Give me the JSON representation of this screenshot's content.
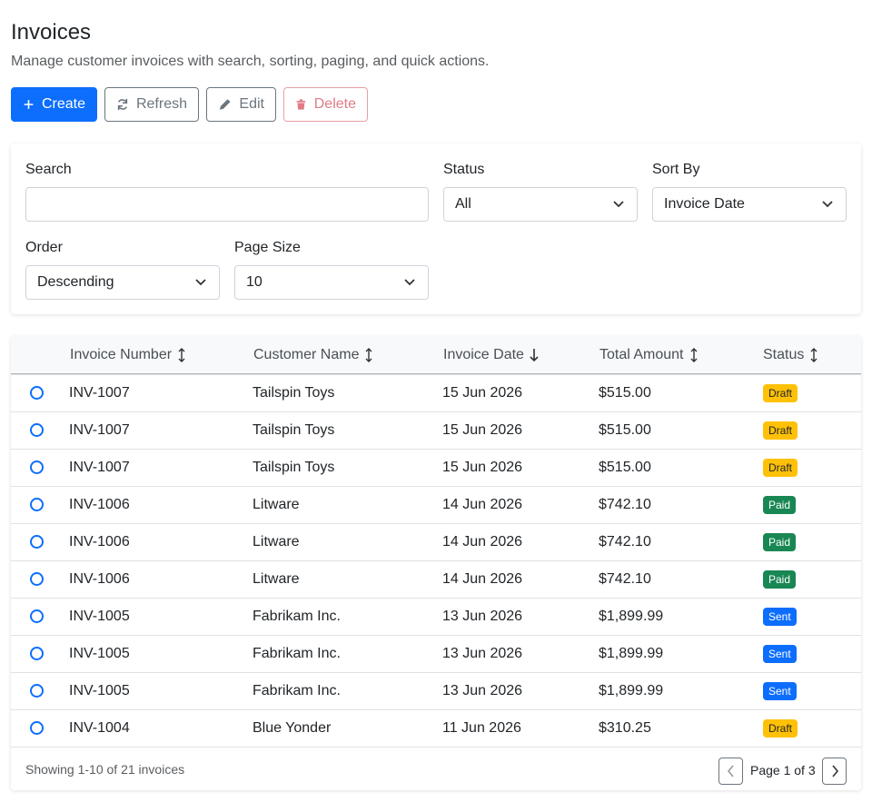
{
  "header": {
    "title": "Invoices",
    "subtitle": "Manage customer invoices with search, sorting, paging, and quick actions."
  },
  "toolbar": {
    "create": "Create",
    "refresh": "Refresh",
    "edit": "Edit",
    "delete": "Delete"
  },
  "filters": {
    "search_label": "Search",
    "status_label": "Status",
    "status_value": "All",
    "sort_label": "Sort By",
    "sort_value": "Invoice Date",
    "order_label": "Order",
    "order_value": "Descending",
    "page_size_label": "Page Size",
    "page_size_value": "10"
  },
  "table": {
    "columns": [
      "Invoice Number",
      "Customer Name",
      "Invoice Date",
      "Total Amount",
      "Status"
    ],
    "rows": [
      {
        "number": "INV-1007",
        "customer": "Tailspin Toys",
        "date": "15 Jun 2026",
        "amount": "$515.00",
        "status": "Draft",
        "status_color": "#ffc107"
      },
      {
        "number": "INV-1007",
        "customer": "Tailspin Toys",
        "date": "15 Jun 2026",
        "amount": "$515.00",
        "status": "Draft",
        "status_color": "#ffc107"
      },
      {
        "number": "INV-1007",
        "customer": "Tailspin Toys",
        "date": "15 Jun 2026",
        "amount": "$515.00",
        "status": "Draft",
        "status_color": "#ffc107"
      },
      {
        "number": "INV-1006",
        "customer": "Litware",
        "date": "14 Jun 2026",
        "amount": "$742.10",
        "status": "Paid",
        "status_color": "#198754"
      },
      {
        "number": "INV-1006",
        "customer": "Litware",
        "date": "14 Jun 2026",
        "amount": "$742.10",
        "status": "Paid",
        "status_color": "#198754"
      },
      {
        "number": "INV-1006",
        "customer": "Litware",
        "date": "14 Jun 2026",
        "amount": "$742.10",
        "status": "Paid",
        "status_color": "#198754"
      },
      {
        "number": "INV-1005",
        "customer": "Fabrikam Inc.",
        "date": "13 Jun 2026",
        "amount": "$1,899.99",
        "status": "Sent",
        "status_color": "#0d6efd"
      },
      {
        "number": "INV-1005",
        "customer": "Fabrikam Inc.",
        "date": "13 Jun 2026",
        "amount": "$1,899.99",
        "status": "Sent",
        "status_color": "#0d6efd"
      },
      {
        "number": "INV-1005",
        "customer": "Fabrikam Inc.",
        "date": "13 Jun 2026",
        "amount": "$1,899.99",
        "status": "Sent",
        "status_color": "#0d6efd"
      },
      {
        "number": "INV-1004",
        "customer": "Blue Yonder",
        "date": "11 Jun 2026",
        "amount": "$310.25",
        "status": "Draft",
        "status_color": "#ffc107"
      }
    ]
  },
  "footer": {
    "summary": "Showing 1-10 of 21 invoices",
    "page": "Page 1 of 3"
  }
}
